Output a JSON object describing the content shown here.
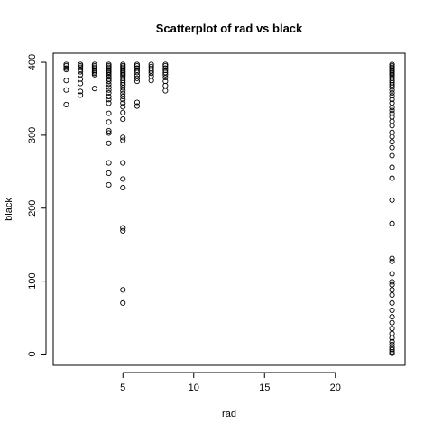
{
  "chart_data": {
    "type": "scatter",
    "title": "Scatterplot of rad vs black",
    "xlabel": "rad",
    "ylabel": "black",
    "xlim": [
      0.08,
      24.92
    ],
    "ylim": [
      -15.5,
      412.4
    ],
    "x_ticks": [
      5,
      10,
      15,
      20
    ],
    "y_ticks": [
      0,
      100,
      200,
      300,
      400
    ],
    "grid": false,
    "legend": "none",
    "marker": "open-circle",
    "point_color": "#000000",
    "points": [
      {
        "x": 1,
        "y": 397
      },
      {
        "x": 1,
        "y": 395
      },
      {
        "x": 1,
        "y": 392
      },
      {
        "x": 1,
        "y": 390
      },
      {
        "x": 1,
        "y": 375
      },
      {
        "x": 1,
        "y": 362
      },
      {
        "x": 1,
        "y": 342
      },
      {
        "x": 2,
        "y": 397
      },
      {
        "x": 2,
        "y": 395
      },
      {
        "x": 2,
        "y": 393
      },
      {
        "x": 2,
        "y": 390
      },
      {
        "x": 2,
        "y": 387
      },
      {
        "x": 2,
        "y": 383
      },
      {
        "x": 2,
        "y": 377
      },
      {
        "x": 2,
        "y": 371
      },
      {
        "x": 2,
        "y": 360
      },
      {
        "x": 2,
        "y": 355
      },
      {
        "x": 3,
        "y": 397
      },
      {
        "x": 3,
        "y": 395
      },
      {
        "x": 3,
        "y": 393
      },
      {
        "x": 3,
        "y": 391
      },
      {
        "x": 3,
        "y": 389
      },
      {
        "x": 3,
        "y": 387
      },
      {
        "x": 3,
        "y": 385
      },
      {
        "x": 3,
        "y": 383
      },
      {
        "x": 3,
        "y": 364
      },
      {
        "x": 4,
        "y": 397
      },
      {
        "x": 4,
        "y": 395
      },
      {
        "x": 4,
        "y": 393
      },
      {
        "x": 4,
        "y": 391
      },
      {
        "x": 4,
        "y": 389
      },
      {
        "x": 4,
        "y": 387
      },
      {
        "x": 4,
        "y": 385
      },
      {
        "x": 4,
        "y": 383
      },
      {
        "x": 4,
        "y": 380
      },
      {
        "x": 4,
        "y": 377
      },
      {
        "x": 4,
        "y": 374
      },
      {
        "x": 4,
        "y": 370
      },
      {
        "x": 4,
        "y": 366
      },
      {
        "x": 4,
        "y": 362
      },
      {
        "x": 4,
        "y": 358
      },
      {
        "x": 4,
        "y": 353
      },
      {
        "x": 4,
        "y": 349
      },
      {
        "x": 4,
        "y": 344
      },
      {
        "x": 4,
        "y": 330
      },
      {
        "x": 4,
        "y": 318
      },
      {
        "x": 4,
        "y": 306
      },
      {
        "x": 4,
        "y": 303
      },
      {
        "x": 4,
        "y": 289
      },
      {
        "x": 4,
        "y": 262
      },
      {
        "x": 4,
        "y": 248
      },
      {
        "x": 4,
        "y": 232
      },
      {
        "x": 5,
        "y": 397
      },
      {
        "x": 5,
        "y": 395
      },
      {
        "x": 5,
        "y": 393
      },
      {
        "x": 5,
        "y": 391
      },
      {
        "x": 5,
        "y": 389
      },
      {
        "x": 5,
        "y": 387
      },
      {
        "x": 5,
        "y": 385
      },
      {
        "x": 5,
        "y": 383
      },
      {
        "x": 5,
        "y": 381
      },
      {
        "x": 5,
        "y": 378
      },
      {
        "x": 5,
        "y": 375
      },
      {
        "x": 5,
        "y": 372
      },
      {
        "x": 5,
        "y": 369
      },
      {
        "x": 5,
        "y": 365
      },
      {
        "x": 5,
        "y": 361
      },
      {
        "x": 5,
        "y": 357
      },
      {
        "x": 5,
        "y": 353
      },
      {
        "x": 5,
        "y": 349
      },
      {
        "x": 5,
        "y": 344
      },
      {
        "x": 5,
        "y": 339
      },
      {
        "x": 5,
        "y": 331
      },
      {
        "x": 5,
        "y": 322
      },
      {
        "x": 5,
        "y": 297
      },
      {
        "x": 5,
        "y": 293
      },
      {
        "x": 5,
        "y": 262
      },
      {
        "x": 5,
        "y": 240
      },
      {
        "x": 5,
        "y": 228
      },
      {
        "x": 5,
        "y": 173
      },
      {
        "x": 5,
        "y": 169
      },
      {
        "x": 5,
        "y": 88
      },
      {
        "x": 5,
        "y": 70
      },
      {
        "x": 6,
        "y": 397
      },
      {
        "x": 6,
        "y": 395
      },
      {
        "x": 6,
        "y": 392
      },
      {
        "x": 6,
        "y": 389
      },
      {
        "x": 6,
        "y": 386
      },
      {
        "x": 6,
        "y": 382
      },
      {
        "x": 6,
        "y": 378
      },
      {
        "x": 6,
        "y": 374
      },
      {
        "x": 6,
        "y": 345
      },
      {
        "x": 6,
        "y": 340
      },
      {
        "x": 7,
        "y": 397
      },
      {
        "x": 7,
        "y": 394
      },
      {
        "x": 7,
        "y": 391
      },
      {
        "x": 7,
        "y": 388
      },
      {
        "x": 7,
        "y": 385
      },
      {
        "x": 7,
        "y": 381
      },
      {
        "x": 7,
        "y": 375
      },
      {
        "x": 8,
        "y": 397
      },
      {
        "x": 8,
        "y": 395
      },
      {
        "x": 8,
        "y": 392
      },
      {
        "x": 8,
        "y": 389
      },
      {
        "x": 8,
        "y": 386
      },
      {
        "x": 8,
        "y": 383
      },
      {
        "x": 8,
        "y": 379
      },
      {
        "x": 8,
        "y": 374
      },
      {
        "x": 8,
        "y": 368
      },
      {
        "x": 8,
        "y": 361
      },
      {
        "x": 24,
        "y": 397
      },
      {
        "x": 24,
        "y": 395
      },
      {
        "x": 24,
        "y": 393
      },
      {
        "x": 24,
        "y": 391
      },
      {
        "x": 24,
        "y": 389
      },
      {
        "x": 24,
        "y": 387
      },
      {
        "x": 24,
        "y": 385
      },
      {
        "x": 24,
        "y": 383
      },
      {
        "x": 24,
        "y": 381
      },
      {
        "x": 24,
        "y": 378
      },
      {
        "x": 24,
        "y": 375
      },
      {
        "x": 24,
        "y": 372
      },
      {
        "x": 24,
        "y": 369
      },
      {
        "x": 24,
        "y": 366
      },
      {
        "x": 24,
        "y": 362
      },
      {
        "x": 24,
        "y": 358
      },
      {
        "x": 24,
        "y": 354
      },
      {
        "x": 24,
        "y": 349
      },
      {
        "x": 24,
        "y": 344
      },
      {
        "x": 24,
        "y": 338
      },
      {
        "x": 24,
        "y": 334
      },
      {
        "x": 24,
        "y": 330
      },
      {
        "x": 24,
        "y": 325
      },
      {
        "x": 24,
        "y": 319
      },
      {
        "x": 24,
        "y": 313
      },
      {
        "x": 24,
        "y": 304
      },
      {
        "x": 24,
        "y": 298
      },
      {
        "x": 24,
        "y": 291
      },
      {
        "x": 24,
        "y": 283
      },
      {
        "x": 24,
        "y": 272
      },
      {
        "x": 24,
        "y": 256
      },
      {
        "x": 24,
        "y": 241
      },
      {
        "x": 24,
        "y": 211
      },
      {
        "x": 24,
        "y": 179
      },
      {
        "x": 24,
        "y": 131
      },
      {
        "x": 24,
        "y": 127
      },
      {
        "x": 24,
        "y": 110
      },
      {
        "x": 24,
        "y": 99
      },
      {
        "x": 24,
        "y": 95
      },
      {
        "x": 24,
        "y": 88
      },
      {
        "x": 24,
        "y": 81
      },
      {
        "x": 24,
        "y": 70
      },
      {
        "x": 24,
        "y": 60
      },
      {
        "x": 24,
        "y": 51
      },
      {
        "x": 24,
        "y": 43
      },
      {
        "x": 24,
        "y": 35
      },
      {
        "x": 24,
        "y": 28
      },
      {
        "x": 24,
        "y": 22
      },
      {
        "x": 24,
        "y": 17
      },
      {
        "x": 24,
        "y": 13
      },
      {
        "x": 24,
        "y": 9
      },
      {
        "x": 24,
        "y": 6
      },
      {
        "x": 24,
        "y": 3
      },
      {
        "x": 24,
        "y": 1
      }
    ]
  }
}
